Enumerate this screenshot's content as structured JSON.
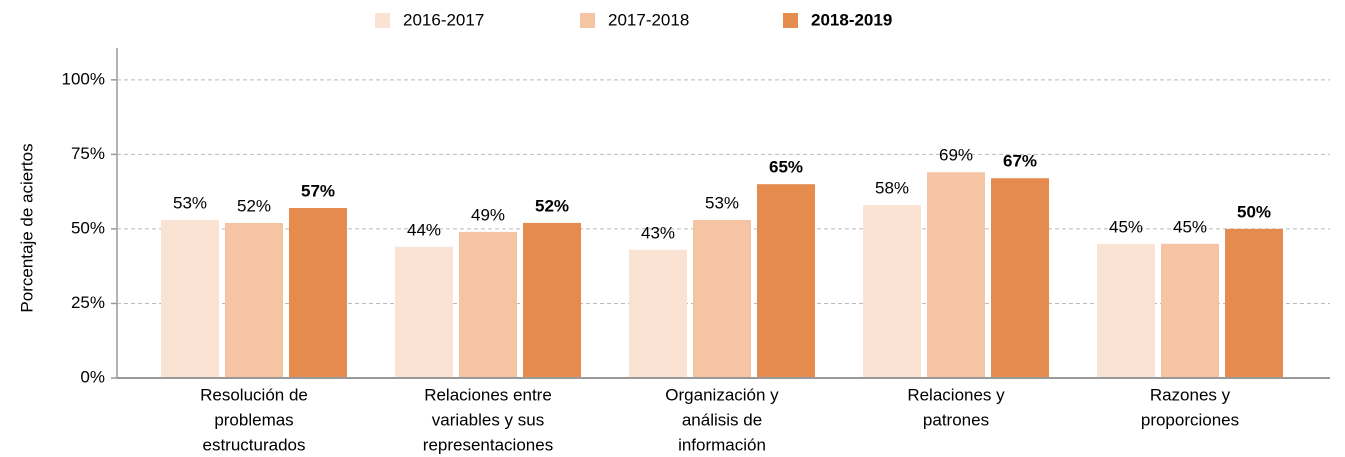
{
  "chart_data": {
    "type": "bar",
    "ylabel": "Porcentaje de aciertos",
    "categories": [
      [
        "Resolución de",
        "problemas",
        "estructurados"
      ],
      [
        "Relaciones entre",
        "variables y sus",
        "representaciones"
      ],
      [
        "Organización y",
        "análisis de",
        "información"
      ],
      [
        "Relaciones y",
        "patrones"
      ],
      [
        "Razones y",
        "proporciones"
      ]
    ],
    "series": [
      {
        "name": "2016-2017",
        "color": "#fbe3d3",
        "values": [
          53,
          44,
          43,
          58,
          45
        ],
        "value_labels": [
          "53%",
          "44%",
          "43%",
          "58%",
          "45%"
        ]
      },
      {
        "name": "2017-2018",
        "color": "#f4c4a3",
        "values": [
          52,
          49,
          53,
          69,
          45
        ],
        "value_labels": [
          "52%",
          "49%",
          "53%",
          "69%",
          "45%"
        ]
      },
      {
        "name": "2018-2019",
        "color": "#e58b4e",
        "values": [
          57,
          52,
          65,
          67,
          50
        ],
        "value_labels": [
          "57%",
          "52%",
          "65%",
          "67%",
          "50%"
        ],
        "bold": true
      }
    ],
    "ylim": [
      0,
      110
    ],
    "yticks": [
      {
        "value": 0,
        "label": "0%"
      },
      {
        "value": 25,
        "label": "25%"
      },
      {
        "value": 50,
        "label": "50%"
      },
      {
        "value": 75,
        "label": "75%"
      },
      {
        "value": 100,
        "label": "100%"
      }
    ],
    "grid": true,
    "legend": "top"
  }
}
